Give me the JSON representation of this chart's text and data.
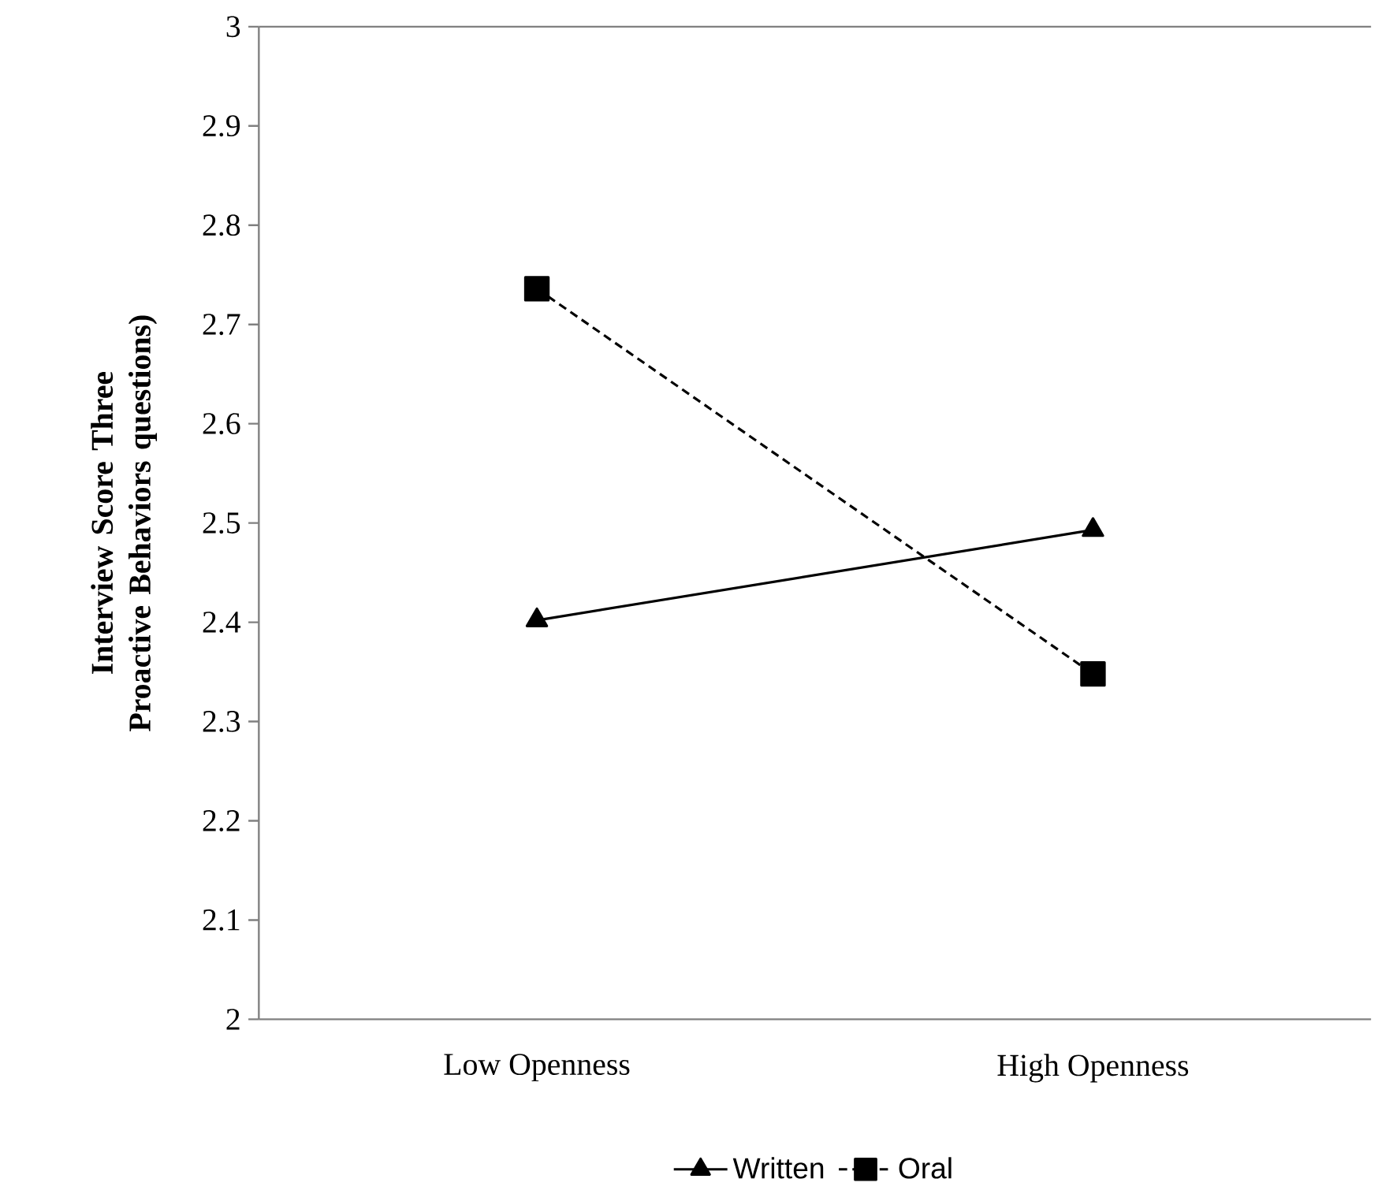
{
  "chart_data": {
    "type": "line",
    "ylabel": "Interview Score Three Proactive Behaviors questions)",
    "categories": [
      "Low Openness",
      "High Openness"
    ],
    "series": [
      {
        "name": "Written",
        "color": "#000000",
        "values": [
          2.402,
          2.493
        ],
        "marker": "triangle",
        "line_style": "solid"
      },
      {
        "name": "Oral",
        "color": "#000000",
        "values": [
          2.736,
          2.348
        ],
        "marker": "square",
        "line_style": "dashed"
      }
    ],
    "ylim": [
      2,
      3
    ],
    "yticks": [
      2,
      2.1,
      2.2,
      2.3,
      2.4,
      2.5,
      2.6,
      2.7,
      2.8,
      2.9,
      3
    ],
    "grid": false,
    "legend": "bottom"
  }
}
